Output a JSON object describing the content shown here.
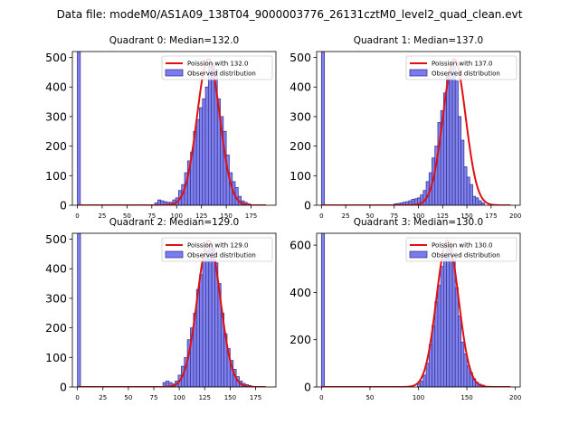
{
  "figure": {
    "suptitle": "Data file: modeM0/AS1A09_138T04_9000003776_26131cztM0_level2_quad_clean.evt"
  },
  "colors": {
    "bar_fill": "#7b7bed",
    "bar_edge": "#3a3a9a",
    "poisson_line": "#e01010",
    "axes": "#000000"
  },
  "chart_data": [
    {
      "type": "bar",
      "title": "Quadrant 0: Median=132.0",
      "median": 132.0,
      "xlim": [
        -5,
        200
      ],
      "ylim": [
        0,
        520
      ],
      "xticks": [
        0,
        25,
        50,
        75,
        100,
        125,
        150,
        175
      ],
      "yticks": [
        0,
        100,
        200,
        300,
        400,
        500
      ],
      "bin_width": 3,
      "bins": [
        [
          0,
          520
        ],
        [
          78,
          8
        ],
        [
          81,
          18
        ],
        [
          84,
          15
        ],
        [
          87,
          12
        ],
        [
          90,
          10
        ],
        [
          93,
          10
        ],
        [
          96,
          18
        ],
        [
          99,
          25
        ],
        [
          102,
          50
        ],
        [
          105,
          70
        ],
        [
          108,
          110
        ],
        [
          111,
          150
        ],
        [
          114,
          180
        ],
        [
          117,
          250
        ],
        [
          120,
          290
        ],
        [
          123,
          330
        ],
        [
          126,
          360
        ],
        [
          129,
          400
        ],
        [
          132,
          470
        ],
        [
          135,
          480
        ],
        [
          138,
          460
        ],
        [
          141,
          360
        ],
        [
          144,
          300
        ],
        [
          147,
          250
        ],
        [
          150,
          170
        ],
        [
          153,
          110
        ],
        [
          156,
          80
        ],
        [
          159,
          60
        ],
        [
          162,
          30
        ],
        [
          165,
          15
        ],
        [
          168,
          10
        ],
        [
          171,
          5
        ]
      ],
      "poisson": {
        "label": "Poission with 132.0",
        "lambda": 132.0,
        "peak": 495
      },
      "legend": {
        "entries": [
          "Poission with 132.0",
          "Observed distribution"
        ],
        "position": "upper right"
      }
    },
    {
      "type": "bar",
      "title": "Quadrant 1: Median=137.0",
      "median": 137.0,
      "xlim": [
        -5,
        205
      ],
      "ylim": [
        0,
        520
      ],
      "xticks": [
        0,
        25,
        50,
        75,
        100,
        125,
        150,
        175,
        200
      ],
      "yticks": [
        0,
        100,
        200,
        300,
        400,
        500
      ],
      "bin_width": 3,
      "bins": [
        [
          0,
          520
        ],
        [
          75,
          5
        ],
        [
          78,
          6
        ],
        [
          81,
          8
        ],
        [
          84,
          10
        ],
        [
          87,
          12
        ],
        [
          90,
          15
        ],
        [
          93,
          20
        ],
        [
          96,
          22
        ],
        [
          99,
          25
        ],
        [
          102,
          35
        ],
        [
          105,
          50
        ],
        [
          108,
          80
        ],
        [
          111,
          110
        ],
        [
          114,
          160
        ],
        [
          117,
          200
        ],
        [
          120,
          280
        ],
        [
          123,
          320
        ],
        [
          126,
          380
        ],
        [
          129,
          440
        ],
        [
          132,
          460
        ],
        [
          135,
          470
        ],
        [
          138,
          420
        ],
        [
          141,
          300
        ],
        [
          144,
          220
        ],
        [
          147,
          130
        ],
        [
          150,
          95
        ],
        [
          153,
          70
        ],
        [
          156,
          30
        ],
        [
          159,
          25
        ],
        [
          162,
          15
        ],
        [
          165,
          8
        ]
      ],
      "poisson": {
        "label": "Poission with 137.0",
        "lambda": 137.0,
        "peak": 495
      },
      "legend": {
        "entries": [
          "Poission with 137.0",
          "Observed distribution"
        ],
        "position": "upper right"
      }
    },
    {
      "type": "bar",
      "title": "Quadrant 2: Median=129.0",
      "median": 129.0,
      "xlim": [
        -5,
        195
      ],
      "ylim": [
        0,
        520
      ],
      "xticks": [
        0,
        25,
        50,
        75,
        100,
        125,
        150,
        175
      ],
      "yticks": [
        0,
        100,
        200,
        300,
        400,
        500
      ],
      "bin_width": 3,
      "bins": [
        [
          0,
          520
        ],
        [
          84,
          15
        ],
        [
          87,
          20
        ],
        [
          90,
          15
        ],
        [
          93,
          10
        ],
        [
          96,
          20
        ],
        [
          99,
          40
        ],
        [
          102,
          70
        ],
        [
          105,
          100
        ],
        [
          108,
          160
        ],
        [
          111,
          200
        ],
        [
          114,
          250
        ],
        [
          117,
          330
        ],
        [
          120,
          380
        ],
        [
          123,
          430
        ],
        [
          126,
          460
        ],
        [
          129,
          480
        ],
        [
          132,
          470
        ],
        [
          135,
          420
        ],
        [
          138,
          350
        ],
        [
          141,
          250
        ],
        [
          144,
          180
        ],
        [
          147,
          130
        ],
        [
          150,
          90
        ],
        [
          153,
          60
        ],
        [
          156,
          35
        ],
        [
          159,
          20
        ],
        [
          162,
          12
        ],
        [
          165,
          8
        ],
        [
          168,
          5
        ]
      ],
      "poisson": {
        "label": "Poission with 129.0",
        "lambda": 129.0,
        "peak": 495
      },
      "legend": {
        "entries": [
          "Poission with 129.0",
          "Observed distribution"
        ],
        "position": "upper right"
      }
    },
    {
      "type": "bar",
      "title": "Quadrant 3: Median=130.0",
      "median": 130.0,
      "xlim": [
        -5,
        205
      ],
      "ylim": [
        0,
        650
      ],
      "xticks": [
        0,
        50,
        100,
        150,
        200
      ],
      "yticks": [
        0,
        200,
        400,
        600
      ],
      "bin_width": 3,
      "bins": [
        [
          0,
          650
        ],
        [
          99,
          15
        ],
        [
          102,
          25
        ],
        [
          105,
          50
        ],
        [
          108,
          100
        ],
        [
          111,
          180
        ],
        [
          114,
          260
        ],
        [
          117,
          360
        ],
        [
          120,
          430
        ],
        [
          123,
          510
        ],
        [
          126,
          560
        ],
        [
          129,
          610
        ],
        [
          132,
          590
        ],
        [
          135,
          540
        ],
        [
          138,
          420
        ],
        [
          141,
          300
        ],
        [
          144,
          190
        ],
        [
          147,
          140
        ],
        [
          150,
          90
        ],
        [
          153,
          60
        ],
        [
          156,
          35
        ],
        [
          159,
          20
        ],
        [
          162,
          12
        ],
        [
          165,
          8
        ]
      ],
      "poisson": {
        "label": "Poission with 130.0",
        "lambda": 130.0,
        "peak": 620
      },
      "legend": {
        "entries": [
          "Poission with 130.0",
          "Observed distribution"
        ],
        "position": "upper right"
      }
    }
  ]
}
